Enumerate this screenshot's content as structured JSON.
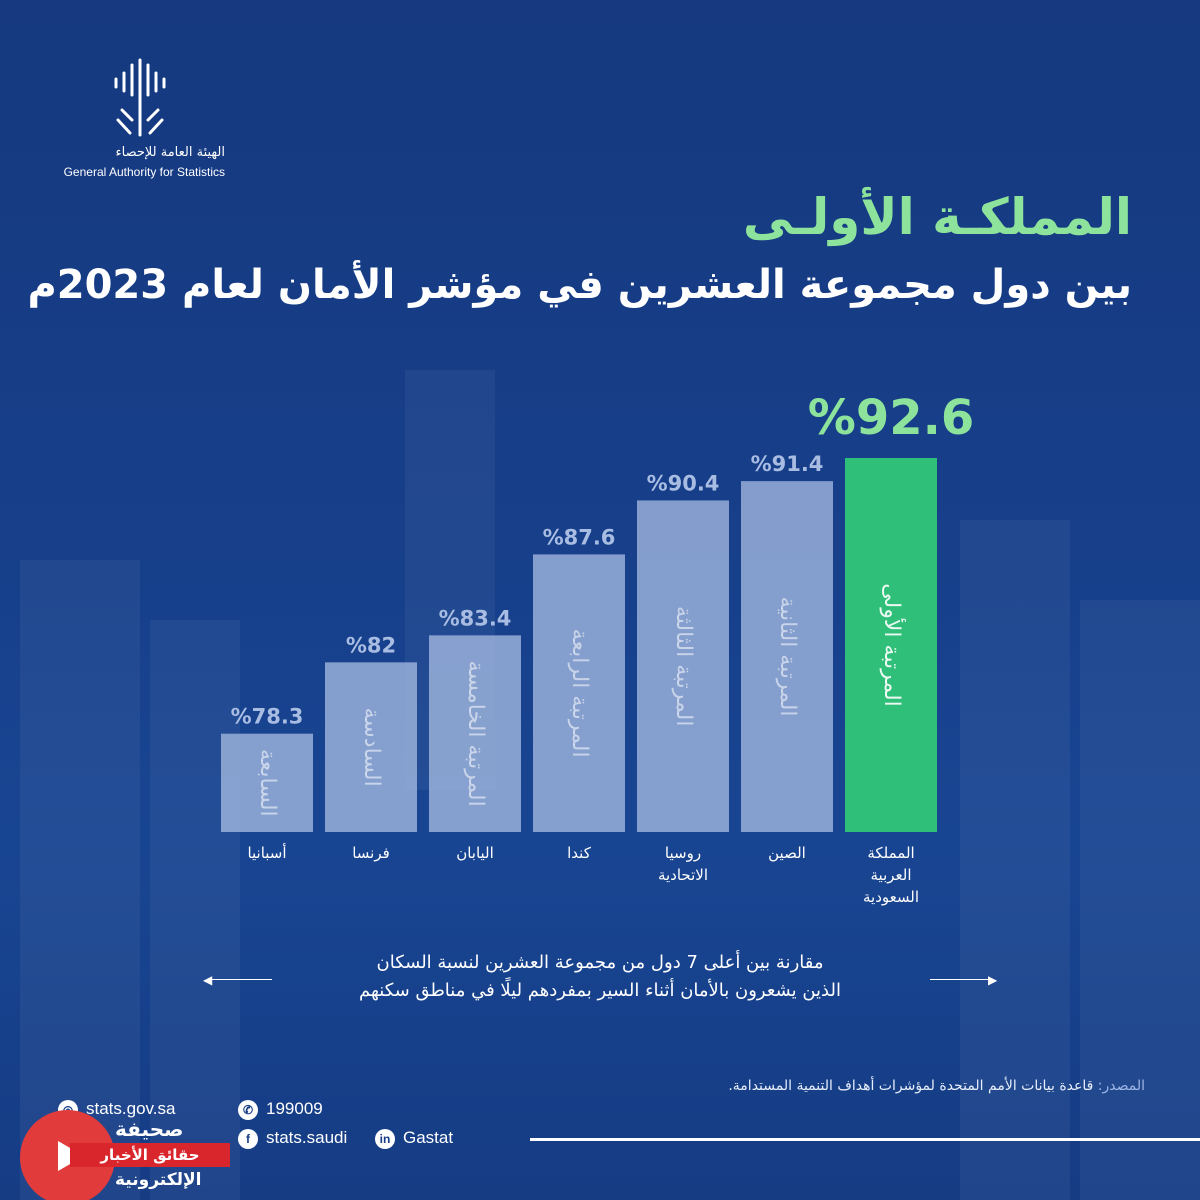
{
  "org": {
    "name_ar": "الهيئة العامة للإحصاء",
    "name_en": "General Authority for Statistics"
  },
  "title": {
    "line1": "المملكـة الأولـى",
    "line2": "بين دول مجموعة العشرين في مؤشر الأمان لعام 2023م"
  },
  "chart_data": {
    "type": "bar",
    "categories": [
      "أسبانيا",
      "فرنسا",
      "اليابان",
      "كندا",
      "روسيا الاتحادية",
      "الصين",
      "المملكة العربية السعودية"
    ],
    "category_lines": [
      [
        "أسبانيا"
      ],
      [
        "فرنسا"
      ],
      [
        "اليابان"
      ],
      [
        "كندا"
      ],
      [
        "روسيا",
        "الاتحادية"
      ],
      [
        "الصين"
      ],
      [
        "المملكة",
        "العربية",
        "السعودية"
      ]
    ],
    "values": [
      78.3,
      82,
      83.4,
      87.6,
      90.4,
      91.4,
      92.6
    ],
    "value_labels": [
      "%78.3",
      "%82",
      "%83.4",
      "%87.6",
      "%90.4",
      "%91.4",
      "%92.6"
    ],
    "rank_labels": [
      "السابعة",
      "السادسة",
      "المرتبة الخامسة",
      "المرتبة الرابعة",
      "المرتبة الثالثة",
      "المرتبة الثانية",
      "المرتبة الأولى"
    ],
    "highlight_index": 6,
    "colors": {
      "bar": "#a9bde3",
      "highlight": "#2fbf78",
      "value_text": "#a9bde3",
      "highlight_text": "#8ee39c"
    }
  },
  "description": {
    "line1": "مقارنة بين أعلى 7 دول من مجموعة العشرين لنسبة السكان",
    "line2": "الذين يشعرون بالأمان أثناء السير بمفردهم ليلًا في مناطق سكنهم"
  },
  "source": {
    "label": "المصدر:",
    "text": "قاعدة بيانات الأمم المتحدة لمؤشرات أهداف التنمية المستدامة."
  },
  "contacts": {
    "website": "stats.gov.sa",
    "phone": "199009",
    "facebook": "stats.saudi",
    "linkedin": "Gastat"
  },
  "watermark": {
    "line1": "صحيفة",
    "band": "حقائق الأخبار",
    "line2": "الإلكترونية"
  }
}
